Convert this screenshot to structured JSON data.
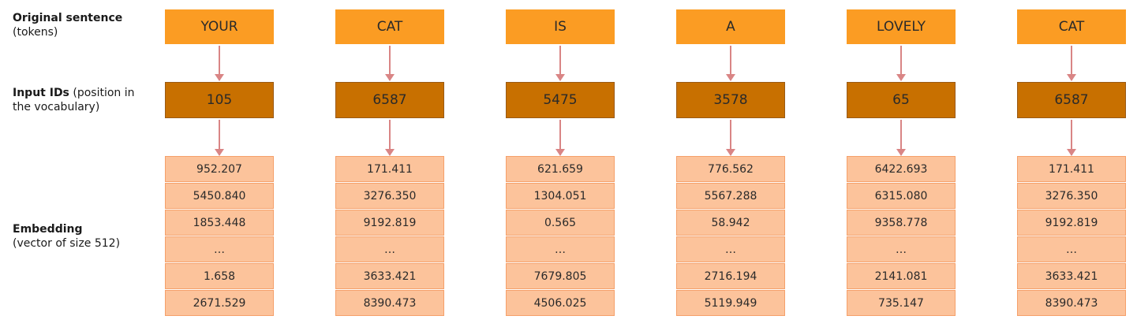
{
  "labels": {
    "tokens_bold": "Original sentence",
    "tokens_rest": "(tokens)",
    "ids_bold": "Input IDs",
    "ids_rest": " (position in the vocabulary)",
    "emb_bold": "Embedding",
    "emb_rest": "(vector of size 512)"
  },
  "columns": [
    {
      "token": "YOUR",
      "id": "105",
      "embedding": [
        "952.207",
        "5450.840",
        "1853.448",
        "…",
        "1.658",
        "2671.529"
      ]
    },
    {
      "token": "CAT",
      "id": "6587",
      "embedding": [
        "171.411",
        "3276.350",
        "9192.819",
        "…",
        "3633.421",
        "8390.473"
      ]
    },
    {
      "token": "IS",
      "id": "5475",
      "embedding": [
        "621.659",
        "1304.051",
        "0.565",
        "…",
        "7679.805",
        "4506.025"
      ]
    },
    {
      "token": "A",
      "id": "3578",
      "embedding": [
        "776.562",
        "5567.288",
        "58.942",
        "…",
        "2716.194",
        "5119.949"
      ]
    },
    {
      "token": "LOVELY",
      "id": "65",
      "embedding": [
        "6422.693",
        "6315.080",
        "9358.778",
        "…",
        "2141.081",
        "735.147"
      ]
    },
    {
      "token": "CAT",
      "id": "6587",
      "embedding": [
        "171.411",
        "3276.350",
        "9192.819",
        "…",
        "3633.421",
        "8390.473"
      ]
    }
  ],
  "colors": {
    "token_box": "#fb9c23",
    "id_box": "#c87000",
    "embedding_cell": "#fcc39b",
    "arrow": "#d98585"
  }
}
